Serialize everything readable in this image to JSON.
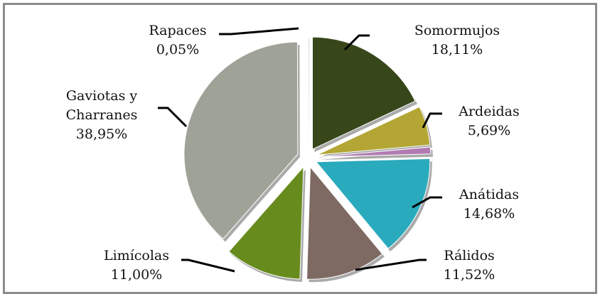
{
  "chart_data": {
    "type": "pie",
    "categories": [
      "Somormujos",
      "Ardeidas",
      null,
      "Anátidas",
      "Rálidos",
      "Limícolas",
      "Gaviotas y Charranes",
      "Rapaces"
    ],
    "values": [
      18.11,
      5.69,
      1,
      14.68,
      11.52,
      11.0,
      38.95,
      0.05
    ],
    "value_labels": [
      "18,11%",
      "5,69%",
      null,
      "14,68%",
      "11,52%",
      "11,00%",
      "38,95%",
      "0,05%"
    ],
    "colors": [
      "#37471a",
      "#b3a634",
      "#b27ab2",
      "#2aaabd",
      "#7e6a63",
      "#688b1d",
      "#9fa397",
      "#8a8a8a"
    ]
  }
}
